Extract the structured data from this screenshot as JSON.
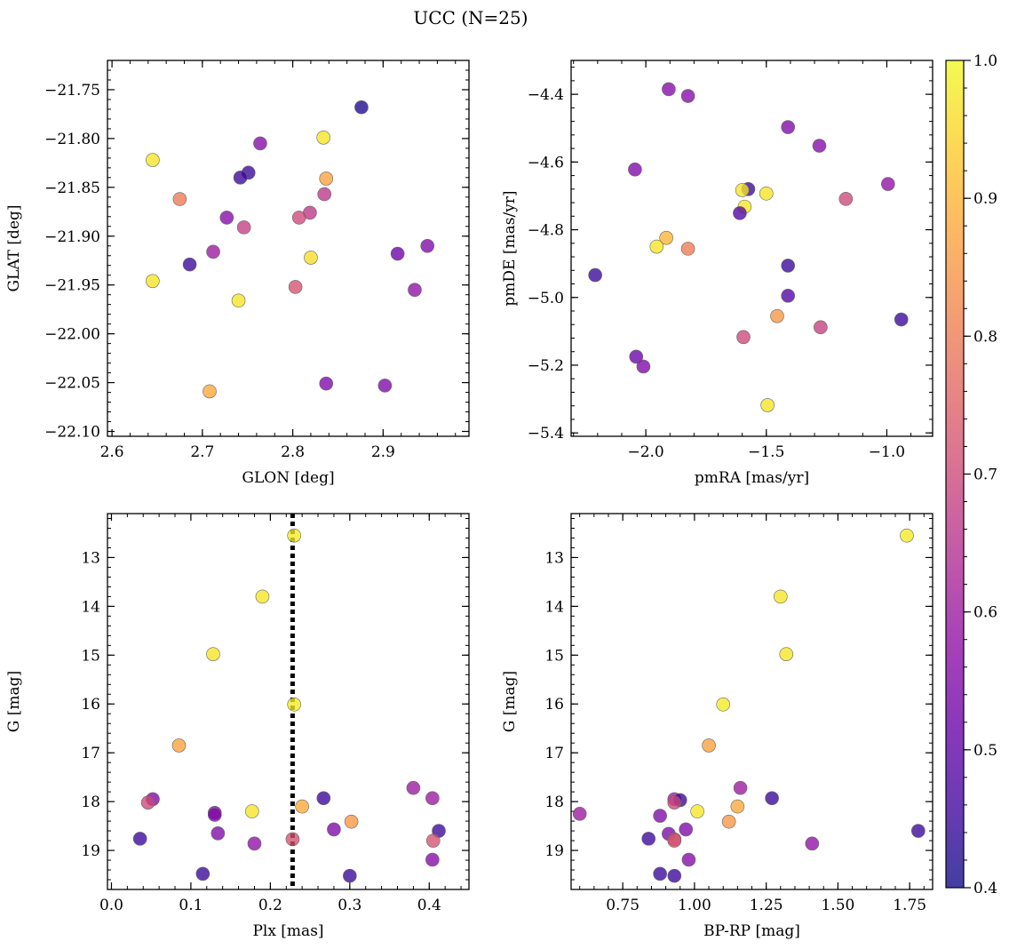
{
  "figure": {
    "title": "UCC (N=25)"
  },
  "colorbar": {
    "min": 0.4,
    "max": 1.0,
    "ticks": [
      0.4,
      0.5,
      0.6,
      0.7,
      0.8,
      0.9,
      1.0
    ],
    "tick_labels": [
      "0.4",
      "0.5",
      "0.6",
      "0.7",
      "0.8",
      "0.9",
      "1.0"
    ],
    "colormap": "plasma"
  },
  "chart_data": [
    {
      "id": "glon-glat",
      "type": "scatter",
      "xlabel": "GLON [deg]",
      "ylabel": "GLAT [deg]",
      "xlim": [
        2.595,
        2.995
      ],
      "ylim": [
        -22.105,
        -21.72
      ],
      "xticks": [
        2.6,
        2.7,
        2.8,
        2.9
      ],
      "xtick_labels": [
        "2.6",
        "2.7",
        "2.8",
        "2.9"
      ],
      "yticks": [
        -21.75,
        -21.8,
        -21.85,
        -21.9,
        -21.95,
        -22.0,
        -22.05,
        -22.1
      ],
      "ytick_labels": [
        "−21.75",
        "−21.80",
        "−21.85",
        "−21.90",
        "−21.95",
        "−22.00",
        "−22.05",
        "−22.10"
      ],
      "points": [
        {
          "x": 2.876,
          "y": -21.768,
          "c": 0.42
        },
        {
          "x": 2.645,
          "y": -21.822,
          "c": 0.97
        },
        {
          "x": 2.834,
          "y": -21.799,
          "c": 0.97
        },
        {
          "x": 2.764,
          "y": -21.805,
          "c": 0.56
        },
        {
          "x": 2.751,
          "y": -21.835,
          "c": 0.45
        },
        {
          "x": 2.742,
          "y": -21.84,
          "c": 0.45
        },
        {
          "x": 2.837,
          "y": -21.841,
          "c": 0.87
        },
        {
          "x": 2.835,
          "y": -21.857,
          "c": 0.66
        },
        {
          "x": 2.675,
          "y": -21.862,
          "c": 0.8
        },
        {
          "x": 2.819,
          "y": -21.876,
          "c": 0.66
        },
        {
          "x": 2.807,
          "y": -21.881,
          "c": 0.7
        },
        {
          "x": 2.727,
          "y": -21.881,
          "c": 0.56
        },
        {
          "x": 2.746,
          "y": -21.891,
          "c": 0.68
        },
        {
          "x": 2.712,
          "y": -21.916,
          "c": 0.6
        },
        {
          "x": 2.916,
          "y": -21.918,
          "c": 0.52
        },
        {
          "x": 2.949,
          "y": -21.91,
          "c": 0.55
        },
        {
          "x": 2.82,
          "y": -21.922,
          "c": 0.96
        },
        {
          "x": 2.686,
          "y": -21.929,
          "c": 0.45
        },
        {
          "x": 2.645,
          "y": -21.946,
          "c": 0.97
        },
        {
          "x": 2.803,
          "y": -21.952,
          "c": 0.72
        },
        {
          "x": 2.935,
          "y": -21.955,
          "c": 0.58
        },
        {
          "x": 2.74,
          "y": -21.966,
          "c": 0.97
        },
        {
          "x": 2.837,
          "y": -22.051,
          "c": 0.55
        },
        {
          "x": 2.902,
          "y": -22.053,
          "c": 0.55
        },
        {
          "x": 2.708,
          "y": -22.059,
          "c": 0.88
        }
      ]
    },
    {
      "id": "pmra-pmde",
      "type": "scatter",
      "xlabel": "pmRA [mas/yr]",
      "ylabel": "pmDE [mas/yr]",
      "xlim": [
        -2.31,
        -0.81
      ],
      "ylim": [
        -5.41,
        -4.3
      ],
      "xticks": [
        -2.0,
        -1.5,
        -1.0
      ],
      "xtick_labels": [
        "−2.0",
        "−1.5",
        "−1.0"
      ],
      "yticks": [
        -4.4,
        -4.6,
        -4.8,
        -5.0,
        -5.2,
        -5.4
      ],
      "ytick_labels": [
        "−4.4",
        "−4.6",
        "−4.8",
        "−5.0",
        "−5.2",
        "−5.4"
      ],
      "points": [
        {
          "x": -1.905,
          "y": -4.385,
          "c": 0.56
        },
        {
          "x": -1.825,
          "y": -4.405,
          "c": 0.56
        },
        {
          "x": -1.41,
          "y": -4.497,
          "c": 0.55
        },
        {
          "x": -1.28,
          "y": -4.552,
          "c": 0.56
        },
        {
          "x": -2.045,
          "y": -4.622,
          "c": 0.55
        },
        {
          "x": -0.995,
          "y": -4.665,
          "c": 0.58
        },
        {
          "x": -1.575,
          "y": -4.68,
          "c": 0.45
        },
        {
          "x": -1.6,
          "y": -4.683,
          "c": 0.97
        },
        {
          "x": -1.5,
          "y": -4.693,
          "c": 0.97
        },
        {
          "x": -1.17,
          "y": -4.709,
          "c": 0.7
        },
        {
          "x": -1.59,
          "y": -4.732,
          "c": 0.97
        },
        {
          "x": -1.61,
          "y": -4.751,
          "c": 0.48
        },
        {
          "x": -1.915,
          "y": -4.824,
          "c": 0.9
        },
        {
          "x": -1.955,
          "y": -4.85,
          "c": 0.97
        },
        {
          "x": -1.825,
          "y": -4.856,
          "c": 0.8
        },
        {
          "x": -1.41,
          "y": -4.906,
          "c": 0.45
        },
        {
          "x": -2.21,
          "y": -4.934,
          "c": 0.45
        },
        {
          "x": -1.41,
          "y": -4.995,
          "c": 0.48
        },
        {
          "x": -1.455,
          "y": -5.055,
          "c": 0.85
        },
        {
          "x": -0.94,
          "y": -5.065,
          "c": 0.45
        },
        {
          "x": -1.275,
          "y": -5.088,
          "c": 0.68
        },
        {
          "x": -1.595,
          "y": -5.117,
          "c": 0.7
        },
        {
          "x": -2.04,
          "y": -5.175,
          "c": 0.52
        },
        {
          "x": -2.01,
          "y": -5.204,
          "c": 0.55
        },
        {
          "x": -1.495,
          "y": -5.318,
          "c": 0.97
        }
      ]
    },
    {
      "id": "plx-g",
      "type": "scatter",
      "xlabel": "Plx [mas]",
      "ylabel": "G [mag]",
      "xlim": [
        -0.005,
        0.45
      ],
      "ylim": [
        19.8,
        12.1
      ],
      "xticks": [
        0.0,
        0.1,
        0.2,
        0.3,
        0.4
      ],
      "xtick_labels": [
        "0.0",
        "0.1",
        "0.2",
        "0.3",
        "0.4"
      ],
      "yticks": [
        13,
        14,
        15,
        16,
        17,
        18,
        19
      ],
      "ytick_labels": [
        "13",
        "14",
        "15",
        "16",
        "17",
        "18",
        "19"
      ],
      "vline": {
        "x": 0.228,
        "style": "dotted"
      },
      "points": [
        {
          "x": 0.23,
          "y": 12.55,
          "c": 0.98
        },
        {
          "x": 0.19,
          "y": 13.8,
          "c": 0.97
        },
        {
          "x": 0.128,
          "y": 14.98,
          "c": 0.97
        },
        {
          "x": 0.23,
          "y": 16.01,
          "c": 0.98
        },
        {
          "x": 0.085,
          "y": 16.85,
          "c": 0.87
        },
        {
          "x": 0.38,
          "y": 17.72,
          "c": 0.6
        },
        {
          "x": 0.052,
          "y": 17.95,
          "c": 0.55
        },
        {
          "x": 0.046,
          "y": 18.02,
          "c": 0.7
        },
        {
          "x": 0.267,
          "y": 17.93,
          "c": 0.45
        },
        {
          "x": 0.404,
          "y": 17.93,
          "c": 0.6
        },
        {
          "x": 0.24,
          "y": 18.1,
          "c": 0.88
        },
        {
          "x": 0.177,
          "y": 18.2,
          "c": 0.97
        },
        {
          "x": 0.13,
          "y": 18.23,
          "c": 0.55
        },
        {
          "x": 0.13,
          "y": 18.27,
          "c": 0.55
        },
        {
          "x": 0.302,
          "y": 18.41,
          "c": 0.85
        },
        {
          "x": 0.28,
          "y": 18.57,
          "c": 0.55
        },
        {
          "x": 0.412,
          "y": 18.6,
          "c": 0.45
        },
        {
          "x": 0.134,
          "y": 18.65,
          "c": 0.55
        },
        {
          "x": 0.228,
          "y": 18.77,
          "c": 0.72
        },
        {
          "x": 0.036,
          "y": 18.76,
          "c": 0.45
        },
        {
          "x": 0.405,
          "y": 18.8,
          "c": 0.72
        },
        {
          "x": 0.18,
          "y": 18.86,
          "c": 0.58
        },
        {
          "x": 0.404,
          "y": 19.19,
          "c": 0.56
        },
        {
          "x": 0.115,
          "y": 19.48,
          "c": 0.45
        },
        {
          "x": 0.3,
          "y": 19.52,
          "c": 0.45
        }
      ]
    },
    {
      "id": "bprp-g",
      "type": "scatter",
      "xlabel": "BP-RP [mag]",
      "ylabel": "G [mag]",
      "xlim": [
        0.57,
        1.83
      ],
      "ylim": [
        19.8,
        12.1
      ],
      "xticks": [
        0.75,
        1.0,
        1.25,
        1.5,
        1.75
      ],
      "xtick_labels": [
        "0.75",
        "1.00",
        "1.25",
        "1.50",
        "1.75"
      ],
      "yticks": [
        13,
        14,
        15,
        16,
        17,
        18,
        19
      ],
      "ytick_labels": [
        "13",
        "14",
        "15",
        "16",
        "17",
        "18",
        "19"
      ],
      "points": [
        {
          "x": 1.74,
          "y": 12.55,
          "c": 0.98
        },
        {
          "x": 1.3,
          "y": 13.8,
          "c": 0.97
        },
        {
          "x": 1.32,
          "y": 14.98,
          "c": 0.97
        },
        {
          "x": 1.1,
          "y": 16.01,
          "c": 0.98
        },
        {
          "x": 1.05,
          "y": 16.85,
          "c": 0.87
        },
        {
          "x": 1.16,
          "y": 17.72,
          "c": 0.6
        },
        {
          "x": 1.27,
          "y": 17.93,
          "c": 0.45
        },
        {
          "x": 0.93,
          "y": 17.95,
          "c": 0.6
        },
        {
          "x": 0.95,
          "y": 17.97,
          "c": 0.45
        },
        {
          "x": 0.93,
          "y": 18.02,
          "c": 0.7
        },
        {
          "x": 1.15,
          "y": 18.1,
          "c": 0.88
        },
        {
          "x": 1.01,
          "y": 18.2,
          "c": 0.97
        },
        {
          "x": 0.6,
          "y": 18.25,
          "c": 0.6
        },
        {
          "x": 0.88,
          "y": 18.29,
          "c": 0.55
        },
        {
          "x": 1.12,
          "y": 18.41,
          "c": 0.85
        },
        {
          "x": 0.97,
          "y": 18.57,
          "c": 0.55
        },
        {
          "x": 1.78,
          "y": 18.6,
          "c": 0.45
        },
        {
          "x": 0.91,
          "y": 18.66,
          "c": 0.55
        },
        {
          "x": 0.84,
          "y": 18.76,
          "c": 0.45
        },
        {
          "x": 0.93,
          "y": 18.77,
          "c": 0.72
        },
        {
          "x": 0.93,
          "y": 18.8,
          "c": 0.72
        },
        {
          "x": 1.41,
          "y": 18.86,
          "c": 0.58
        },
        {
          "x": 0.98,
          "y": 19.19,
          "c": 0.56
        },
        {
          "x": 0.88,
          "y": 19.48,
          "c": 0.45
        },
        {
          "x": 0.93,
          "y": 19.52,
          "c": 0.45
        }
      ]
    }
  ]
}
